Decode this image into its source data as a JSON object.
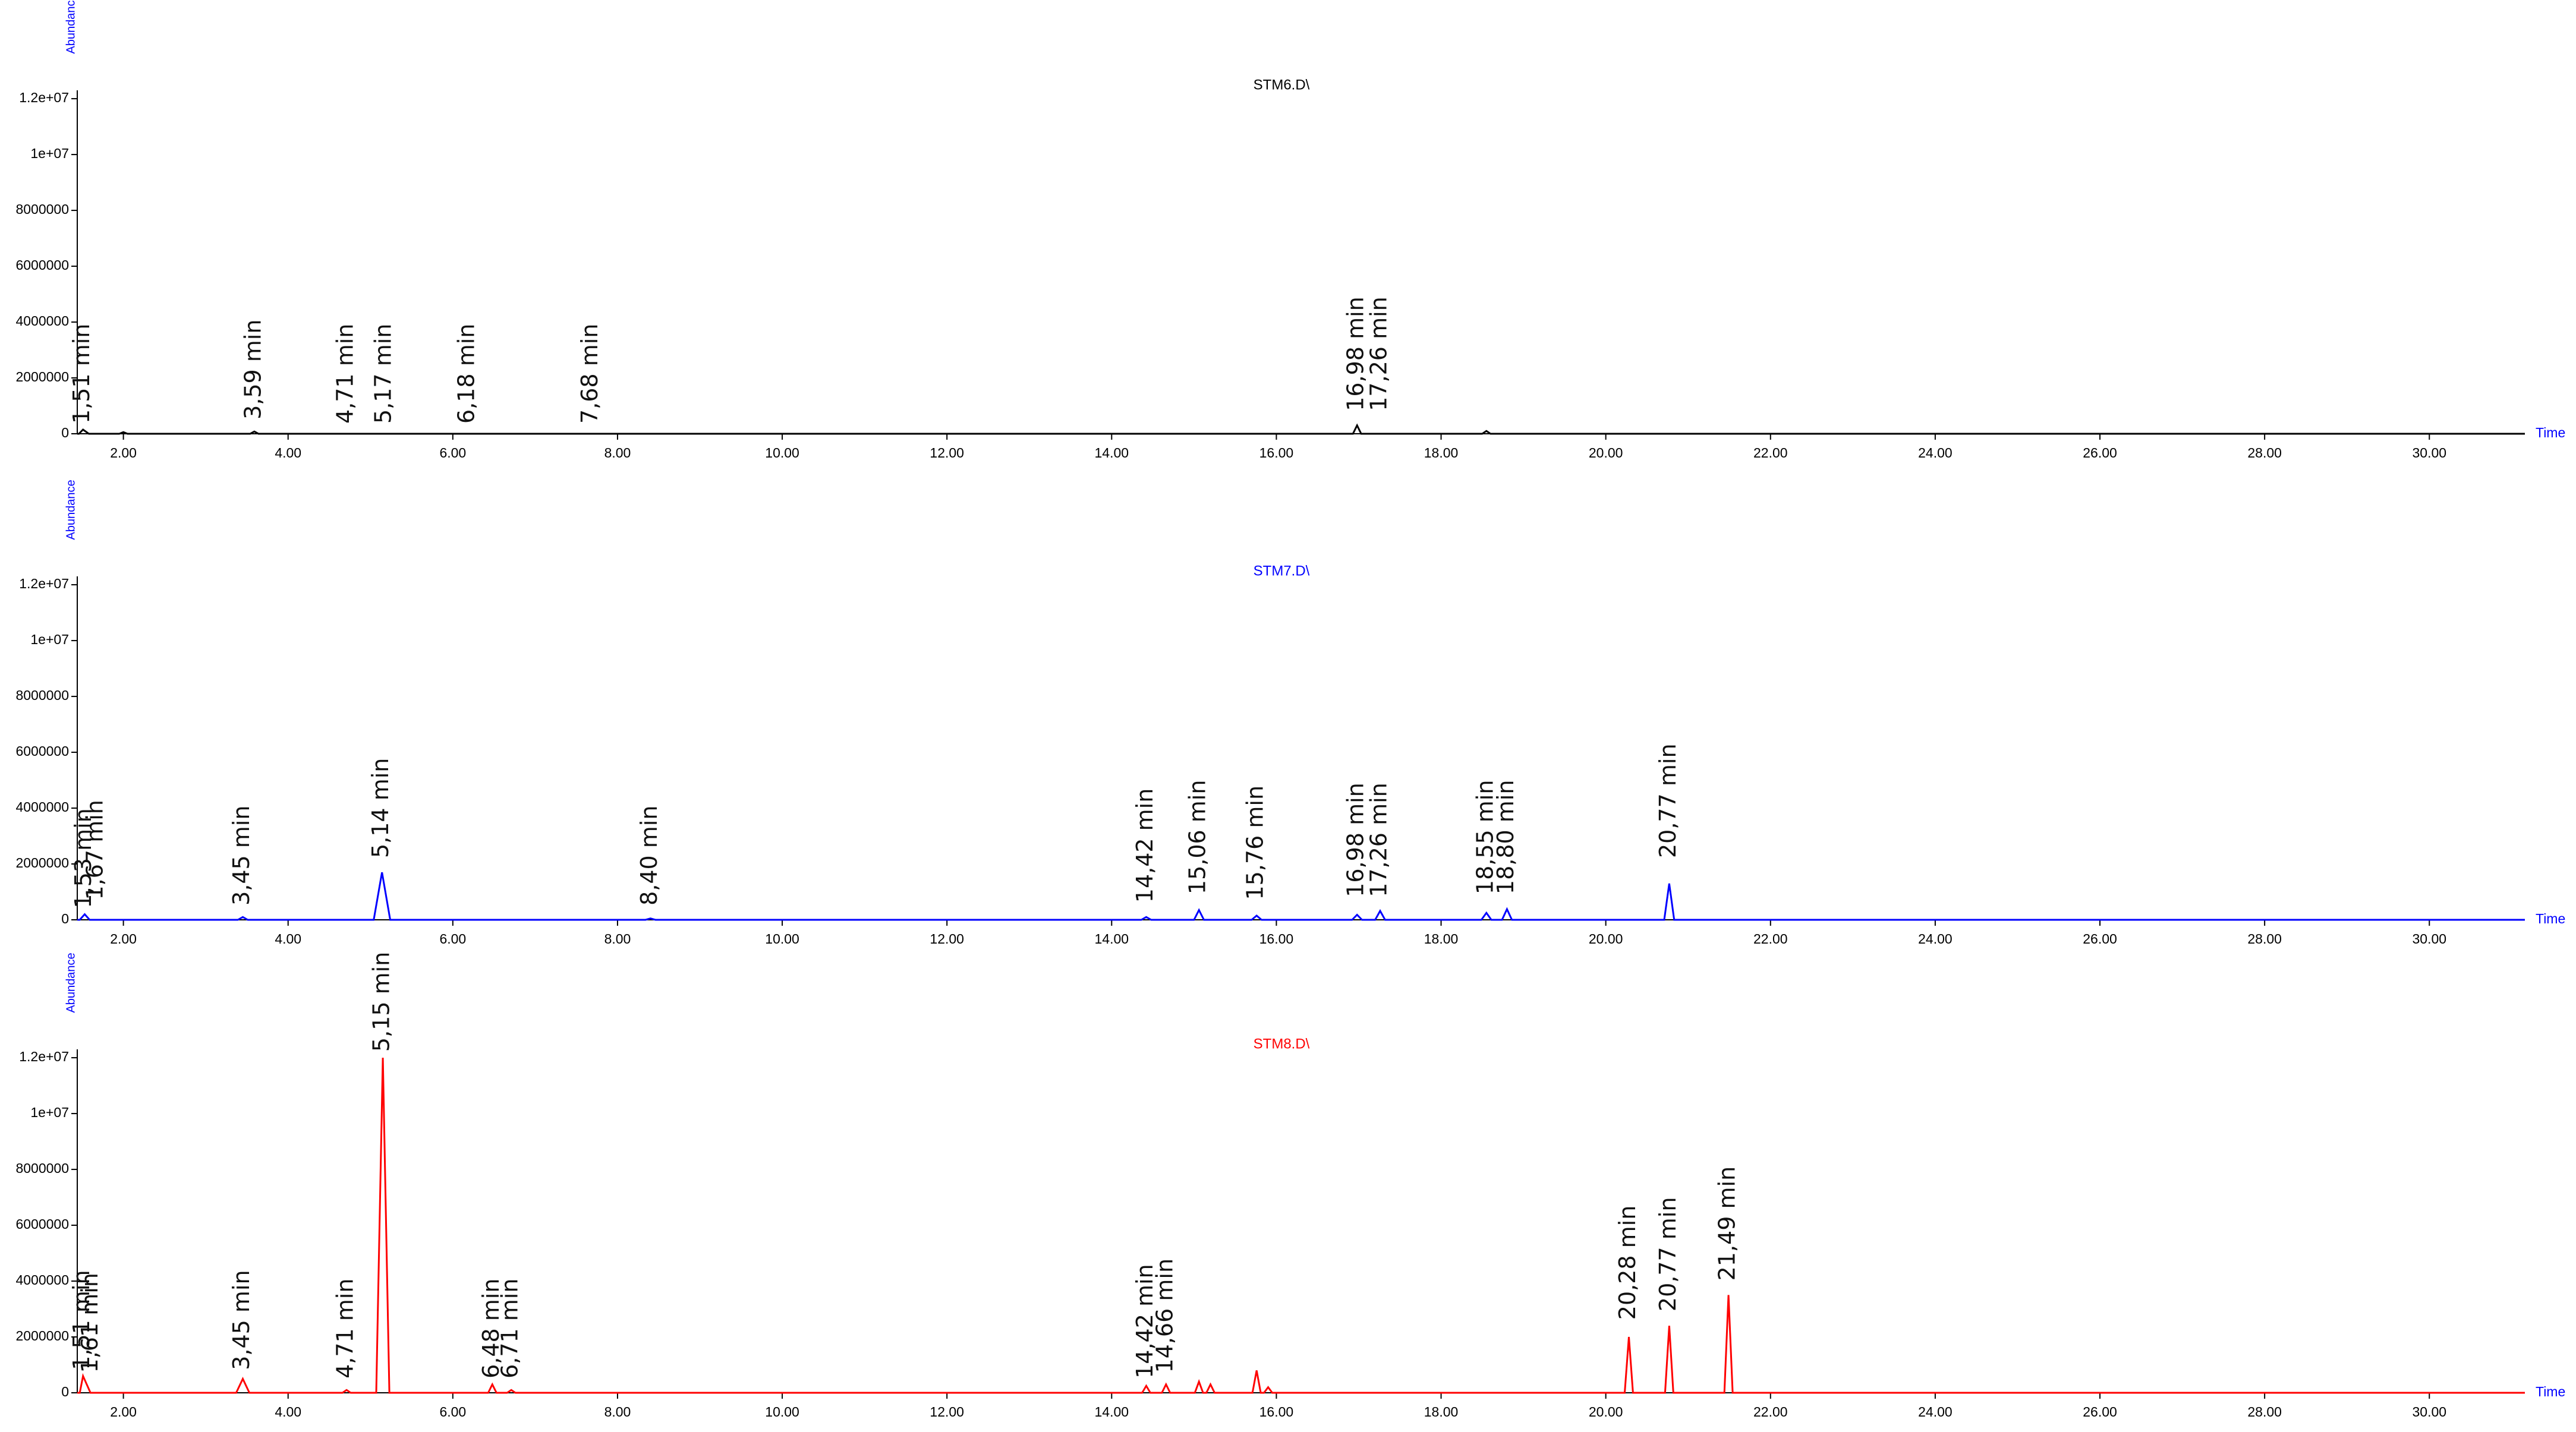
{
  "chart_data": [
    {
      "type": "line",
      "title": "STM6.D\\",
      "ylabel": "Abundance",
      "xlabel": "Time",
      "color": "#000000",
      "xlim": [
        1.44,
        31.16
      ],
      "ylim": [
        0,
        12300000
      ],
      "xticks": [
        {
          "value": 2,
          "label": "2.00"
        },
        {
          "value": 4,
          "label": "4.00"
        },
        {
          "value": 6,
          "label": "6.00"
        },
        {
          "value": 8,
          "label": "8.00"
        },
        {
          "value": 10,
          "label": "10.00"
        },
        {
          "value": 12,
          "label": "12.00"
        },
        {
          "value": 14,
          "label": "14.00"
        },
        {
          "value": 16,
          "label": "16.00"
        },
        {
          "value": 18,
          "label": "18.00"
        },
        {
          "value": 20,
          "label": "20.00"
        },
        {
          "value": 22,
          "label": "22.00"
        },
        {
          "value": 24,
          "label": "24.00"
        },
        {
          "value": 26,
          "label": "26.00"
        },
        {
          "value": 28,
          "label": "28.00"
        },
        {
          "value": 30,
          "label": "30.00"
        }
      ],
      "yticks": [
        0,
        2000000,
        4000000,
        6000000,
        8000000,
        {
          "value": 10000000,
          "label": "1e+07"
        },
        {
          "value": 12000000,
          "label": "1.2e+07"
        }
      ],
      "x": [
        1.44,
        1.46,
        1.51,
        1.58,
        1.95,
        2.0,
        2.05,
        3.54,
        3.59,
        3.64,
        16.93,
        16.98,
        17.03,
        18.5,
        18.55,
        18.6,
        31.16
      ],
      "values": [
        0,
        0,
        150000,
        0,
        0,
        60000,
        0,
        0,
        80000,
        0,
        0,
        300000,
        0,
        0,
        100000,
        0,
        0
      ],
      "peak_labels": [
        {
          "text": "1,51 min",
          "x": 1.51,
          "y": 150000
        },
        {
          "text": "3,59 min",
          "x": 3.59,
          "y": 300000
        },
        {
          "text": "4,71 min",
          "x": 4.71,
          "y": 150000
        },
        {
          "text": "5,17 min",
          "x": 5.17,
          "y": 150000
        },
        {
          "text": "6,18 min",
          "x": 6.18,
          "y": 150000
        },
        {
          "text": "7,68 min",
          "x": 7.68,
          "y": 150000
        },
        {
          "text": "16,98 min",
          "x": 16.98,
          "y": 600000
        },
        {
          "text": "17,26 min",
          "x": 17.26,
          "y": 600000
        }
      ]
    },
    {
      "type": "line",
      "title": "STM7.D\\",
      "ylabel": "Abundance",
      "xlabel": "Time",
      "color": "#0000ff",
      "xlim": [
        1.44,
        31.16
      ],
      "ylim": [
        0,
        12300000
      ],
      "xticks": [
        {
          "value": 2,
          "label": "2.00"
        },
        {
          "value": 4,
          "label": "4.00"
        },
        {
          "value": 6,
          "label": "6.00"
        },
        {
          "value": 8,
          "label": "8.00"
        },
        {
          "value": 10,
          "label": "10.00"
        },
        {
          "value": 12,
          "label": "12.00"
        },
        {
          "value": 14,
          "label": "14.00"
        },
        {
          "value": 16,
          "label": "16.00"
        },
        {
          "value": 18,
          "label": "18.00"
        },
        {
          "value": 20,
          "label": "20.00"
        },
        {
          "value": 22,
          "label": "22.00"
        },
        {
          "value": 24,
          "label": "24.00"
        },
        {
          "value": 26,
          "label": "26.00"
        },
        {
          "value": 28,
          "label": "28.00"
        },
        {
          "value": 30,
          "label": "30.00"
        }
      ],
      "yticks": [
        0,
        2000000,
        4000000,
        6000000,
        8000000,
        {
          "value": 10000000,
          "label": "1e+07"
        },
        {
          "value": 12000000,
          "label": "1.2e+07"
        }
      ],
      "x": [
        1.44,
        1.47,
        1.53,
        1.59,
        3.39,
        3.45,
        3.51,
        5.04,
        5.14,
        5.24,
        8.34,
        8.4,
        8.46,
        14.36,
        14.42,
        14.48,
        15.0,
        15.06,
        15.12,
        15.7,
        15.76,
        15.82,
        16.92,
        16.98,
        17.04,
        17.2,
        17.26,
        17.32,
        18.49,
        18.55,
        18.61,
        18.74,
        18.8,
        18.86,
        20.71,
        20.77,
        20.83,
        31.16
      ],
      "values": [
        0,
        0,
        200000,
        0,
        0,
        100000,
        0,
        0,
        1700000,
        0,
        0,
        50000,
        0,
        0,
        100000,
        0,
        0,
        350000,
        0,
        0,
        150000,
        0,
        0,
        180000,
        0,
        0,
        320000,
        0,
        0,
        250000,
        0,
        0,
        380000,
        0,
        0,
        1300000,
        0,
        0
      ],
      "peak_labels": [
        {
          "text": "1,53 min",
          "x": 1.53,
          "y": 200000
        },
        {
          "text": "1,67 min",
          "x": 1.67,
          "y": 500000
        },
        {
          "text": "3,45 min",
          "x": 3.45,
          "y": 300000
        },
        {
          "text": "5,14 min",
          "x": 5.14,
          "y": 2000000
        },
        {
          "text": "8,40 min",
          "x": 8.4,
          "y": 300000
        },
        {
          "text": "14,42 min",
          "x": 14.42,
          "y": 400000
        },
        {
          "text": "15,06 min",
          "x": 15.06,
          "y": 700000
        },
        {
          "text": "15,76 min",
          "x": 15.76,
          "y": 500000
        },
        {
          "text": "16,98 min",
          "x": 16.98,
          "y": 600000
        },
        {
          "text": "17,26 min",
          "x": 17.26,
          "y": 600000
        },
        {
          "text": "18,55 min",
          "x": 18.55,
          "y": 700000
        },
        {
          "text": "18,80 min",
          "x": 18.8,
          "y": 700000
        },
        {
          "text": "20,77 min",
          "x": 20.77,
          "y": 2000000
        }
      ]
    },
    {
      "type": "line",
      "title": "STM8.D\\",
      "ylabel": "Abundance",
      "xlabel": "Time",
      "color": "#ff0000",
      "xlim": [
        1.44,
        31.16
      ],
      "ylim": [
        0,
        12300000
      ],
      "xticks": [
        {
          "value": 2,
          "label": "2.00"
        },
        {
          "value": 4,
          "label": "4.00"
        },
        {
          "value": 6,
          "label": "6.00"
        },
        {
          "value": 8,
          "label": "8.00"
        },
        {
          "value": 10,
          "label": "10.00"
        },
        {
          "value": 12,
          "label": "12.00"
        },
        {
          "value": 14,
          "label": "14.00"
        },
        {
          "value": 16,
          "label": "16.00"
        },
        {
          "value": 18,
          "label": "18.00"
        },
        {
          "value": 20,
          "label": "20.00"
        },
        {
          "value": 22,
          "label": "22.00"
        },
        {
          "value": 24,
          "label": "24.00"
        },
        {
          "value": 26,
          "label": "26.00"
        },
        {
          "value": 28,
          "label": "28.00"
        },
        {
          "value": 30,
          "label": "30.00"
        }
      ],
      "yticks": [
        0,
        2000000,
        4000000,
        6000000,
        8000000,
        {
          "value": 10000000,
          "label": "1e+07"
        },
        {
          "value": 12000000,
          "label": "1.2e+07"
        }
      ],
      "x": [
        1.44,
        1.47,
        1.51,
        1.6,
        3.37,
        3.45,
        3.53,
        4.66,
        4.71,
        4.76,
        5.07,
        5.15,
        5.23,
        6.43,
        6.48,
        6.53,
        6.66,
        6.71,
        6.76,
        14.37,
        14.42,
        14.47,
        14.61,
        14.66,
        14.71,
        15.01,
        15.06,
        15.11,
        15.15,
        15.2,
        15.25,
        15.71,
        15.76,
        15.81,
        15.85,
        15.9,
        15.95,
        20.23,
        20.28,
        20.33,
        20.72,
        20.77,
        20.82,
        21.44,
        21.49,
        21.54,
        31.16
      ],
      "values": [
        0,
        0,
        600000,
        0,
        0,
        500000,
        0,
        0,
        100000,
        0,
        0,
        12000000,
        0,
        0,
        300000,
        0,
        0,
        100000,
        0,
        0,
        250000,
        0,
        0,
        300000,
        0,
        0,
        400000,
        0,
        0,
        300000,
        0,
        0,
        800000,
        0,
        0,
        200000,
        0,
        0,
        2000000,
        0,
        0,
        2400000,
        0,
        0,
        3500000,
        0,
        0
      ],
      "peak_labels": [
        {
          "text": "1,51 min",
          "x": 1.51,
          "y": 600000
        },
        {
          "text": "1,61 min",
          "x": 1.61,
          "y": 500000
        },
        {
          "text": "3,45 min",
          "x": 3.45,
          "y": 600000
        },
        {
          "text": "4,71 min",
          "x": 4.71,
          "y": 300000
        },
        {
          "text": "5,15 min",
          "x": 5.15,
          "y": 12000000
        },
        {
          "text": "6,48 min",
          "x": 6.48,
          "y": 300000
        },
        {
          "text": "6,71 min",
          "x": 6.71,
          "y": 300000
        },
        {
          "text": "14,42 min",
          "x": 14.42,
          "y": 300000
        },
        {
          "text": "14,66 min",
          "x": 14.66,
          "y": 500000
        },
        {
          "text": "20,28 min",
          "x": 20.28,
          "y": 2400000
        },
        {
          "text": "20,77 min",
          "x": 20.77,
          "y": 2700000
        },
        {
          "text": "21,49 min",
          "x": 21.49,
          "y": 3800000
        }
      ]
    }
  ]
}
